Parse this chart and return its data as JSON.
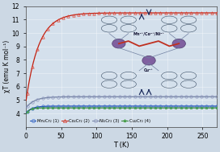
{
  "xlabel": "T (K)",
  "ylabel": "χT (emu K mol⁻¹)",
  "xlim": [
    0,
    270
  ],
  "ylim": [
    3,
    12
  ],
  "yticks": [
    4,
    5,
    6,
    7,
    8,
    9,
    10,
    11,
    12
  ],
  "xticks": [
    0,
    50,
    100,
    150,
    200,
    250
  ],
  "fig_bg": "#ccd8e4",
  "plot_bg": "#d4e0ec",
  "series": [
    {
      "name": "Mn₂Cr₂ (1)",
      "line_color": "#2050b0",
      "marker_color": "#4070d0",
      "sat": 4.55,
      "low": 4.0,
      "tau": 8,
      "marker": "o"
    },
    {
      "name": "Co₂Cr₂ (2)",
      "line_color": "#c02010",
      "marker_color": "#e04030",
      "sat": 11.5,
      "low": 4.8,
      "tau": 18,
      "marker": "^"
    },
    {
      "name": "Ni₂Cr₂ (3)",
      "line_color": "#7080a0",
      "marker_color": "#9098c0",
      "sat": 5.25,
      "low": 4.4,
      "tau": 12,
      "marker": "o"
    },
    {
      "name": "Cu₂Cr₂ (4)",
      "line_color": "#308030",
      "marker_color": "#40a040",
      "sat": 4.42,
      "low": 3.94,
      "tau": 5,
      "marker": "*"
    }
  ],
  "inset": {
    "label_top": "Mn²⁺/Co²⁺/Ni²⁺",
    "label_bot": "Cu²⁺",
    "bg_color": "#c0d0e0",
    "metal_color": "#8060a0",
    "metal_edge": "#504070",
    "ligand_color": "#3d5066",
    "bond_color": "#7080a0",
    "oxalate_color": "#c03020",
    "arrow_color": "#203060"
  }
}
